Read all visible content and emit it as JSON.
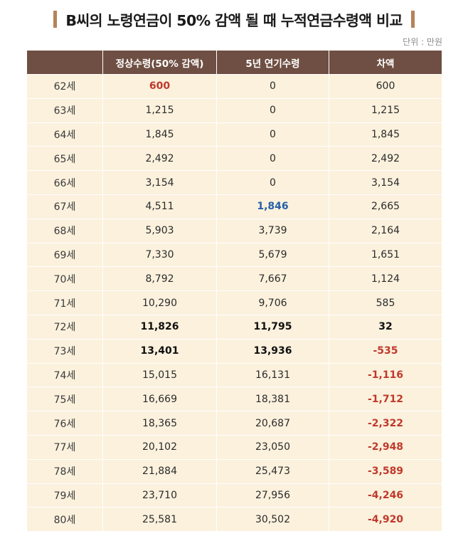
{
  "title": "B씨의 노령연금이 50% 감액 될 때 누적연금수령액 비교",
  "unit": "단위 : 만원",
  "columns": [
    "",
    "정상수령(50% 감액)",
    "5년 연기수령",
    "차액"
  ],
  "rows": [
    {
      "age": "62세",
      "normal": "600",
      "deferred": "0",
      "diff": "600"
    },
    {
      "age": "63세",
      "normal": "1,215",
      "deferred": "0",
      "diff": "1,215"
    },
    {
      "age": "64세",
      "normal": "1,845",
      "deferred": "0",
      "diff": "1,845"
    },
    {
      "age": "65세",
      "normal": "2,492",
      "deferred": "0",
      "diff": "2,492"
    },
    {
      "age": "66세",
      "normal": "3,154",
      "deferred": "0",
      "diff": "3,154"
    },
    {
      "age": "67세",
      "normal": "4,511",
      "deferred": "1,846",
      "diff": "2,665"
    },
    {
      "age": "68세",
      "normal": "5,903",
      "deferred": "3,739",
      "diff": "2,164"
    },
    {
      "age": "69세",
      "normal": "7,330",
      "deferred": "5,679",
      "diff": "1,651"
    },
    {
      "age": "70세",
      "normal": "8,792",
      "deferred": "7,667",
      "diff": "1,124"
    },
    {
      "age": "71세",
      "normal": "10,290",
      "deferred": "9,706",
      "diff": "585"
    },
    {
      "age": "72세",
      "normal": "11,826",
      "deferred": "11,795",
      "diff": "32"
    },
    {
      "age": "73세",
      "normal": "13,401",
      "deferred": "13,936",
      "diff": "-535"
    },
    {
      "age": "74세",
      "normal": "15,015",
      "deferred": "16,131",
      "diff": "-1,116"
    },
    {
      "age": "75세",
      "normal": "16,669",
      "deferred": "18,381",
      "diff": "-1,712"
    },
    {
      "age": "76세",
      "normal": "18,365",
      "deferred": "20,687",
      "diff": "-2,322"
    },
    {
      "age": "77세",
      "normal": "20,102",
      "deferred": "23,050",
      "diff": "-2,948"
    },
    {
      "age": "78세",
      "normal": "21,884",
      "deferred": "25,473",
      "diff": "-3,589"
    },
    {
      "age": "79세",
      "normal": "23,710",
      "deferred": "27,956",
      "diff": "-4,246"
    },
    {
      "age": "80세",
      "normal": "25,581",
      "deferred": "30,502",
      "diff": "-4,920"
    }
  ],
  "colors": {
    "header_bg": "#6f4f43",
    "row_bg": "#fbf1dd",
    "accent_bar": "#b5835a",
    "highlight_red": "#c0392b",
    "highlight_blue": "#2560a8"
  }
}
